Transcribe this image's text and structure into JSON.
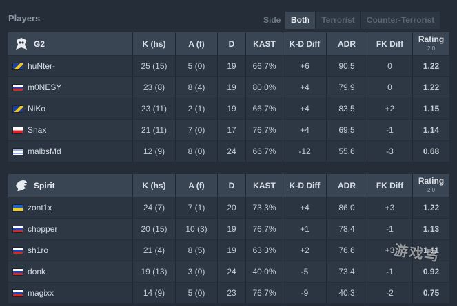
{
  "header": {
    "title": "Players",
    "side_label": "Side",
    "tabs": [
      {
        "label": "Both",
        "active": true
      },
      {
        "label": "Terrorist",
        "active": false
      },
      {
        "label": "Counter-Terrorist",
        "active": false
      }
    ]
  },
  "columns": {
    "k": "K (hs)",
    "a": "A (f)",
    "d": "D",
    "kast": "KAST",
    "kd_diff": "K-D Diff",
    "adr": "ADR",
    "fk_diff": "FK Diff",
    "rating": "Rating",
    "rating_sub": "2.0"
  },
  "teams": [
    {
      "name": "G2",
      "logo_icon": "g2-logo-icon",
      "players": [
        {
          "flag": "bosnia-flag",
          "name": "huNter-",
          "k": "25 (15)",
          "a": "5 (0)",
          "d": "19",
          "kast": "66.7%",
          "kd_diff": "+6",
          "adr": "90.5",
          "fk_diff": "0",
          "rating": "1.22"
        },
        {
          "flag": "russia-flag",
          "name": "m0NESY",
          "k": "23 (8)",
          "a": "8 (4)",
          "d": "19",
          "kast": "80.0%",
          "kd_diff": "+4",
          "adr": "79.9",
          "fk_diff": "0",
          "rating": "1.22"
        },
        {
          "flag": "bosnia-flag",
          "name": "NiKo",
          "k": "23 (11)",
          "a": "2 (1)",
          "d": "19",
          "kast": "66.7%",
          "kd_diff": "+4",
          "adr": "83.5",
          "fk_diff": "+2",
          "rating": "1.15"
        },
        {
          "flag": "poland-flag",
          "name": "Snax",
          "k": "21 (11)",
          "a": "7 (0)",
          "d": "17",
          "kast": "76.7%",
          "kd_diff": "+4",
          "adr": "69.5",
          "fk_diff": "-1",
          "rating": "1.14"
        },
        {
          "flag": "israel-flag",
          "name": "malbsMd",
          "k": "12 (9)",
          "a": "8 (0)",
          "d": "24",
          "kast": "66.7%",
          "kd_diff": "-12",
          "adr": "55.6",
          "fk_diff": "-3",
          "rating": "0.68"
        }
      ]
    },
    {
      "name": "Spirit",
      "logo_icon": "spirit-logo-icon",
      "players": [
        {
          "flag": "ukraine-flag",
          "name": "zont1x",
          "k": "24 (7)",
          "a": "7 (1)",
          "d": "20",
          "kast": "73.3%",
          "kd_diff": "+4",
          "adr": "86.0",
          "fk_diff": "+3",
          "rating": "1.22"
        },
        {
          "flag": "russia-flag",
          "name": "chopper",
          "k": "20 (15)",
          "a": "10 (3)",
          "d": "19",
          "kast": "76.7%",
          "kd_diff": "+1",
          "adr": "78.4",
          "fk_diff": "-1",
          "rating": "1.13"
        },
        {
          "flag": "russia-flag",
          "name": "sh1ro",
          "k": "21 (4)",
          "a": "8 (5)",
          "d": "19",
          "kast": "63.3%",
          "kd_diff": "+2",
          "adr": "76.6",
          "fk_diff": "+3",
          "rating": "1.11"
        },
        {
          "flag": "russia-flag",
          "name": "donk",
          "k": "19 (13)",
          "a": "3 (0)",
          "d": "24",
          "kast": "40.0%",
          "kd_diff": "-5",
          "adr": "73.4",
          "fk_diff": "-1",
          "rating": "0.92"
        },
        {
          "flag": "russia-flag",
          "name": "magixx",
          "k": "14 (9)",
          "a": "5 (0)",
          "d": "23",
          "kast": "76.7%",
          "kd_diff": "-9",
          "adr": "40.3",
          "fk_diff": "-2",
          "rating": "0.75"
        }
      ]
    }
  ],
  "watermark": "游戏鸟",
  "colors": {
    "positive": "#2fbf2f",
    "negative": "#d23b3b",
    "rating_positive": "#35d235",
    "rating_negative": "#e23b3b"
  }
}
